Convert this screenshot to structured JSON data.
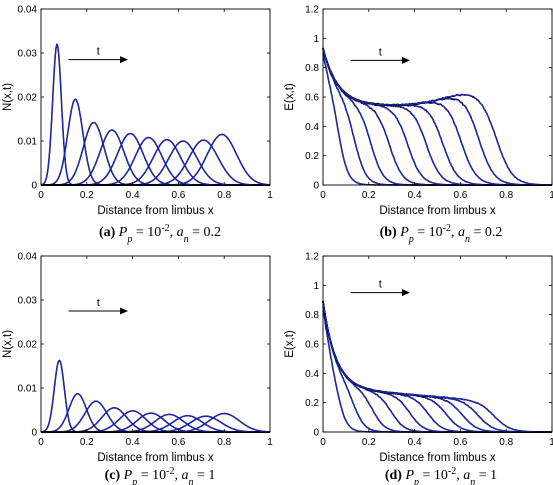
{
  "chart_data": [
    {
      "type": "line",
      "panel_label": "(a)",
      "caption": "P_p = 10^{-2}, a_n = 0.2",
      "xlabel": "Distance from limbus x",
      "ylabel": "N(x,t)",
      "xlim": [
        0,
        1
      ],
      "ylim": [
        0,
        0.04
      ],
      "xticks": [
        "0",
        "0.2",
        "0.4",
        "0.6",
        "0.8",
        "1"
      ],
      "yticks": [
        "0",
        "0.01",
        "0.02",
        "0.03",
        "0.04"
      ],
      "arrow_label": "t",
      "arrow": {
        "x0": 0.12,
        "x1": 0.38,
        "y": 0.0285
      },
      "shape": "bump",
      "series_colors": {
        "stochastic": "#000000",
        "mean": "#1c2bd0"
      },
      "curves": [
        {
          "center": 0.07,
          "peak": 0.032,
          "width": 0.019
        },
        {
          "center": 0.15,
          "peak": 0.0195,
          "width": 0.033
        },
        {
          "center": 0.23,
          "peak": 0.0142,
          "width": 0.045
        },
        {
          "center": 0.31,
          "peak": 0.0125,
          "width": 0.052
        },
        {
          "center": 0.39,
          "peak": 0.0117,
          "width": 0.056
        },
        {
          "center": 0.47,
          "peak": 0.0108,
          "width": 0.058
        },
        {
          "center": 0.55,
          "peak": 0.0103,
          "width": 0.06
        },
        {
          "center": 0.62,
          "peak": 0.01,
          "width": 0.062
        },
        {
          "center": 0.71,
          "peak": 0.0102,
          "width": 0.064
        },
        {
          "center": 0.79,
          "peak": 0.0115,
          "width": 0.064
        }
      ]
    },
    {
      "type": "line",
      "panel_label": "(b)",
      "caption": "P_p = 10^{-2}, a_n = 0.2",
      "xlabel": "Distance from limbus x",
      "ylabel": "E(x,t)",
      "xlim": [
        0,
        1
      ],
      "ylim": [
        0,
        1.2
      ],
      "xticks": [
        "0",
        "0.2",
        "0.4",
        "0.6",
        "0.8",
        "1"
      ],
      "yticks": [
        "0",
        "0.2",
        "0.4",
        "0.6",
        "0.8",
        "1",
        "1.2"
      ],
      "arrow_label": "t",
      "arrow": {
        "x0": 0.12,
        "x1": 0.38,
        "y": 0.85
      },
      "shape": "front",
      "series_colors": {
        "stochastic": "#000000",
        "mean": "#1c2bd0"
      },
      "envelope": {
        "e0": 0.93,
        "decay": 0.065,
        "floor": 0.54,
        "bump_center": 0.66,
        "bump_height": 0.09,
        "bump_width": 0.13
      },
      "curves": [
        {
          "front": 0.07,
          "width": 0.022
        },
        {
          "front": 0.14,
          "width": 0.025
        },
        {
          "front": 0.21,
          "width": 0.027
        },
        {
          "front": 0.29,
          "width": 0.029
        },
        {
          "front": 0.37,
          "width": 0.03
        },
        {
          "front": 0.45,
          "width": 0.031
        },
        {
          "front": 0.52,
          "width": 0.032
        },
        {
          "front": 0.6,
          "width": 0.033
        },
        {
          "front": 0.68,
          "width": 0.034
        },
        {
          "front": 0.76,
          "width": 0.035
        }
      ]
    },
    {
      "type": "line",
      "panel_label": "(c)",
      "caption": "P_p = 10^{-2}, a_n = 1",
      "xlabel": "Distance from limbus x",
      "ylabel": "N(x,t)",
      "xlim": [
        0,
        1
      ],
      "ylim": [
        0,
        0.04
      ],
      "xticks": [
        "0",
        "0.2",
        "0.4",
        "0.6",
        "0.8",
        "1"
      ],
      "yticks": [
        "0",
        "0.01",
        "0.02",
        "0.03",
        "0.04"
      ],
      "arrow_label": "t",
      "arrow": {
        "x0": 0.12,
        "x1": 0.38,
        "y": 0.0275
      },
      "shape": "bump",
      "series_colors": {
        "stochastic": "#000000",
        "mean": "#1c2bd0"
      },
      "curves": [
        {
          "center": 0.08,
          "peak": 0.0163,
          "width": 0.022
        },
        {
          "center": 0.16,
          "peak": 0.0087,
          "width": 0.038
        },
        {
          "center": 0.24,
          "peak": 0.007,
          "width": 0.048
        },
        {
          "center": 0.32,
          "peak": 0.0055,
          "width": 0.054
        },
        {
          "center": 0.4,
          "peak": 0.0048,
          "width": 0.058
        },
        {
          "center": 0.48,
          "peak": 0.0043,
          "width": 0.06
        },
        {
          "center": 0.56,
          "peak": 0.004,
          "width": 0.062
        },
        {
          "center": 0.64,
          "peak": 0.0037,
          "width": 0.064
        },
        {
          "center": 0.72,
          "peak": 0.0036,
          "width": 0.066
        },
        {
          "center": 0.8,
          "peak": 0.0042,
          "width": 0.066
        }
      ]
    },
    {
      "type": "line",
      "panel_label": "(d)",
      "caption": "P_p = 10^{-2}, a_n = 1",
      "xlabel": "Distance from limbus x",
      "ylabel": "E(x,t)",
      "xlim": [
        0,
        1
      ],
      "ylim": [
        0,
        1.2
      ],
      "xticks": [
        "0",
        "0.2",
        "0.4",
        "0.6",
        "0.8",
        "1"
      ],
      "yticks": [
        "0",
        "0.2",
        "0.4",
        "0.6",
        "0.8",
        "1",
        "1.2"
      ],
      "arrow_label": "t",
      "arrow": {
        "x0": 0.12,
        "x1": 0.38,
        "y": 0.95
      },
      "shape": "front",
      "series_colors": {
        "stochastic": "#000000",
        "mean": "#1c2bd0"
      },
      "envelope": {
        "e0": 0.89,
        "decay": 0.055,
        "floor": 0.3,
        "slope": -0.12,
        "bump_center": 0.6,
        "bump_height": 0.0,
        "bump_width": 0.1
      },
      "curves": [
        {
          "front": 0.07,
          "width": 0.022
        },
        {
          "front": 0.14,
          "width": 0.025
        },
        {
          "front": 0.22,
          "width": 0.027
        },
        {
          "front": 0.3,
          "width": 0.029
        },
        {
          "front": 0.38,
          "width": 0.03
        },
        {
          "front": 0.46,
          "width": 0.031
        },
        {
          "front": 0.54,
          "width": 0.032
        },
        {
          "front": 0.61,
          "width": 0.033
        },
        {
          "front": 0.68,
          "width": 0.034
        },
        {
          "front": 0.75,
          "width": 0.035
        }
      ]
    }
  ]
}
